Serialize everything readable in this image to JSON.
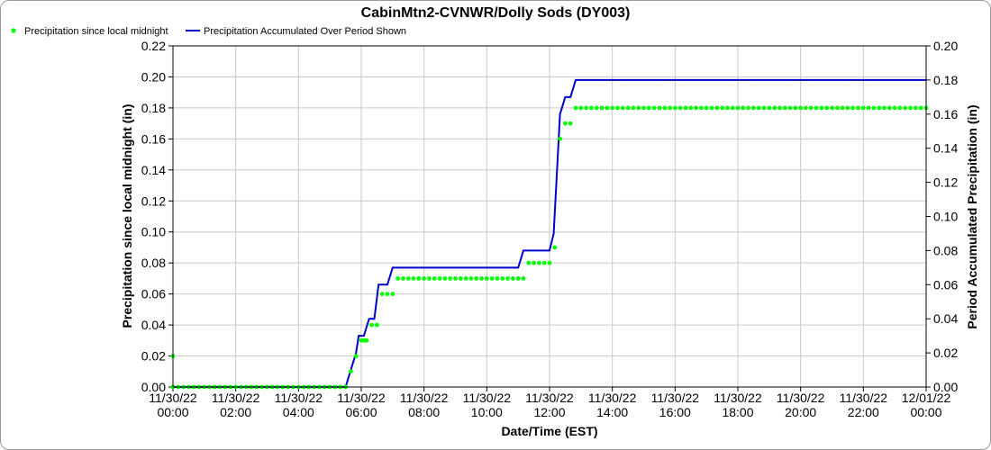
{
  "chart_data": {
    "type": "line",
    "title": "CabinMtn2-CVNWR/Dolly Sods (DY003)",
    "xlabel": "Date/Time (EST)",
    "ylabel": "Precipitation since local midnight (in)",
    "y2label": "Period Accumulated Precipitation (in)",
    "grid": true,
    "legend_placement": "top-left",
    "colors": {
      "points": "#00ff00",
      "line": "#0000cc",
      "grid": "#c8c8c8"
    },
    "xlim": [
      0,
      24
    ],
    "ylim": [
      0,
      0.22
    ],
    "y2lim": [
      0,
      0.2
    ],
    "yticks": [
      "0.00",
      "0.02",
      "0.04",
      "0.06",
      "0.08",
      "0.10",
      "0.12",
      "0.14",
      "0.16",
      "0.18",
      "0.20",
      "0.22"
    ],
    "y2ticks": [
      "0.00",
      "0.02",
      "0.04",
      "0.06",
      "0.08",
      "0.10",
      "0.12",
      "0.14",
      "0.16",
      "0.18",
      "0.20"
    ],
    "xticks": [
      {
        "date": "11/30/22",
        "time": "00:00"
      },
      {
        "date": "11/30/22",
        "time": "02:00"
      },
      {
        "date": "11/30/22",
        "time": "04:00"
      },
      {
        "date": "11/30/22",
        "time": "06:00"
      },
      {
        "date": "11/30/22",
        "time": "08:00"
      },
      {
        "date": "11/30/22",
        "time": "10:00"
      },
      {
        "date": "11/30/22",
        "time": "12:00"
      },
      {
        "date": "11/30/22",
        "time": "14:00"
      },
      {
        "date": "11/30/22",
        "time": "16:00"
      },
      {
        "date": "11/30/22",
        "time": "18:00"
      },
      {
        "date": "11/30/22",
        "time": "20:00"
      },
      {
        "date": "11/30/22",
        "time": "22:00"
      },
      {
        "date": "12/01/22",
        "time": "00:00"
      }
    ],
    "series": [
      {
        "name": "Precipitation since local midnight",
        "axis": "left",
        "style": "points",
        "points": [
          [
            "11/30/22 00:00",
            0.02
          ],
          [
            "11/30/22 00:00",
            0.0
          ],
          [
            "11/30/22 00:10",
            0.0
          ],
          [
            "11/30/22 00:20",
            0.0
          ],
          [
            "11/30/22 00:30",
            0.0
          ],
          [
            "11/30/22 00:40",
            0.0
          ],
          [
            "11/30/22 00:50",
            0.0
          ],
          [
            "11/30/22 01:00",
            0.0
          ],
          [
            "11/30/22 01:10",
            0.0
          ],
          [
            "11/30/22 01:20",
            0.0
          ],
          [
            "11/30/22 01:30",
            0.0
          ],
          [
            "11/30/22 01:40",
            0.0
          ],
          [
            "11/30/22 01:50",
            0.0
          ],
          [
            "11/30/22 02:00",
            0.0
          ],
          [
            "11/30/22 02:10",
            0.0
          ],
          [
            "11/30/22 02:20",
            0.0
          ],
          [
            "11/30/22 02:30",
            0.0
          ],
          [
            "11/30/22 02:40",
            0.0
          ],
          [
            "11/30/22 02:50",
            0.0
          ],
          [
            "11/30/22 03:00",
            0.0
          ],
          [
            "11/30/22 03:10",
            0.0
          ],
          [
            "11/30/22 03:20",
            0.0
          ],
          [
            "11/30/22 03:30",
            0.0
          ],
          [
            "11/30/22 03:40",
            0.0
          ],
          [
            "11/30/22 03:50",
            0.0
          ],
          [
            "11/30/22 04:00",
            0.0
          ],
          [
            "11/30/22 04:10",
            0.0
          ],
          [
            "11/30/22 04:20",
            0.0
          ],
          [
            "11/30/22 04:30",
            0.0
          ],
          [
            "11/30/22 04:40",
            0.0
          ],
          [
            "11/30/22 04:50",
            0.0
          ],
          [
            "11/30/22 05:00",
            0.0
          ],
          [
            "11/30/22 05:10",
            0.0
          ],
          [
            "11/30/22 05:20",
            0.0
          ],
          [
            "11/30/22 05:30",
            0.0
          ],
          [
            "11/30/22 05:40",
            0.01
          ],
          [
            "11/30/22 05:50",
            0.02
          ],
          [
            "11/30/22 06:00",
            0.03
          ],
          [
            "11/30/22 06:05",
            0.03
          ],
          [
            "11/30/22 06:10",
            0.03
          ],
          [
            "11/30/22 06:20",
            0.04
          ],
          [
            "11/30/22 06:30",
            0.04
          ],
          [
            "11/30/22 06:40",
            0.06
          ],
          [
            "11/30/22 06:50",
            0.06
          ],
          [
            "11/30/22 07:00",
            0.06
          ],
          [
            "11/30/22 07:10",
            0.07
          ],
          [
            "11/30/22 07:20",
            0.07
          ],
          [
            "11/30/22 07:30",
            0.07
          ],
          [
            "11/30/22 07:40",
            0.07
          ],
          [
            "11/30/22 07:50",
            0.07
          ],
          [
            "11/30/22 08:00",
            0.07
          ],
          [
            "11/30/22 08:10",
            0.07
          ],
          [
            "11/30/22 08:20",
            0.07
          ],
          [
            "11/30/22 08:30",
            0.07
          ],
          [
            "11/30/22 08:40",
            0.07
          ],
          [
            "11/30/22 08:50",
            0.07
          ],
          [
            "11/30/22 09:00",
            0.07
          ],
          [
            "11/30/22 09:10",
            0.07
          ],
          [
            "11/30/22 09:20",
            0.07
          ],
          [
            "11/30/22 09:30",
            0.07
          ],
          [
            "11/30/22 09:40",
            0.07
          ],
          [
            "11/30/22 09:50",
            0.07
          ],
          [
            "11/30/22 10:00",
            0.07
          ],
          [
            "11/30/22 10:10",
            0.07
          ],
          [
            "11/30/22 10:20",
            0.07
          ],
          [
            "11/30/22 10:30",
            0.07
          ],
          [
            "11/30/22 10:40",
            0.07
          ],
          [
            "11/30/22 10:50",
            0.07
          ],
          [
            "11/30/22 11:00",
            0.07
          ],
          [
            "11/30/22 11:10",
            0.07
          ],
          [
            "11/30/22 11:20",
            0.08
          ],
          [
            "11/30/22 11:30",
            0.08
          ],
          [
            "11/30/22 11:40",
            0.08
          ],
          [
            "11/30/22 11:50",
            0.08
          ],
          [
            "11/30/22 12:00",
            0.08
          ],
          [
            "11/30/22 12:10",
            0.09
          ],
          [
            "11/30/22 12:20",
            0.16
          ],
          [
            "11/30/22 12:30",
            0.17
          ],
          [
            "11/30/22 12:40",
            0.17
          ],
          [
            "11/30/22 12:50",
            0.18
          ],
          [
            "11/30/22 13:00",
            0.18
          ],
          [
            "11/30/22 13:10",
            0.18
          ],
          [
            "11/30/22 13:20",
            0.18
          ],
          [
            "11/30/22 13:30",
            0.18
          ],
          [
            "11/30/22 13:40",
            0.18
          ],
          [
            "11/30/22 13:50",
            0.18
          ],
          [
            "11/30/22 14:00",
            0.18
          ],
          [
            "11/30/22 14:10",
            0.18
          ],
          [
            "11/30/22 14:20",
            0.18
          ],
          [
            "11/30/22 14:30",
            0.18
          ],
          [
            "11/30/22 14:40",
            0.18
          ],
          [
            "11/30/22 14:50",
            0.18
          ],
          [
            "11/30/22 15:00",
            0.18
          ],
          [
            "11/30/22 15:10",
            0.18
          ],
          [
            "11/30/22 15:20",
            0.18
          ],
          [
            "11/30/22 15:30",
            0.18
          ],
          [
            "11/30/22 15:40",
            0.18
          ],
          [
            "11/30/22 15:50",
            0.18
          ],
          [
            "11/30/22 16:00",
            0.18
          ],
          [
            "11/30/22 16:10",
            0.18
          ],
          [
            "11/30/22 16:20",
            0.18
          ],
          [
            "11/30/22 16:30",
            0.18
          ],
          [
            "11/30/22 16:40",
            0.18
          ],
          [
            "11/30/22 16:50",
            0.18
          ],
          [
            "11/30/22 17:00",
            0.18
          ],
          [
            "11/30/22 17:10",
            0.18
          ],
          [
            "11/30/22 17:20",
            0.18
          ],
          [
            "11/30/22 17:30",
            0.18
          ],
          [
            "11/30/22 17:40",
            0.18
          ],
          [
            "11/30/22 17:50",
            0.18
          ],
          [
            "11/30/22 18:00",
            0.18
          ],
          [
            "11/30/22 18:10",
            0.18
          ],
          [
            "11/30/22 18:20",
            0.18
          ],
          [
            "11/30/22 18:30",
            0.18
          ],
          [
            "11/30/22 18:40",
            0.18
          ],
          [
            "11/30/22 18:50",
            0.18
          ],
          [
            "11/30/22 19:00",
            0.18
          ],
          [
            "11/30/22 19:10",
            0.18
          ],
          [
            "11/30/22 19:20",
            0.18
          ],
          [
            "11/30/22 19:30",
            0.18
          ],
          [
            "11/30/22 19:40",
            0.18
          ],
          [
            "11/30/22 19:50",
            0.18
          ],
          [
            "11/30/22 20:00",
            0.18
          ],
          [
            "11/30/22 20:10",
            0.18
          ],
          [
            "11/30/22 20:20",
            0.18
          ],
          [
            "11/30/22 20:30",
            0.18
          ],
          [
            "11/30/22 20:40",
            0.18
          ],
          [
            "11/30/22 20:50",
            0.18
          ],
          [
            "11/30/22 21:00",
            0.18
          ],
          [
            "11/30/22 21:10",
            0.18
          ],
          [
            "11/30/22 21:20",
            0.18
          ],
          [
            "11/30/22 21:30",
            0.18
          ],
          [
            "11/30/22 21:40",
            0.18
          ],
          [
            "11/30/22 21:50",
            0.18
          ],
          [
            "11/30/22 22:00",
            0.18
          ],
          [
            "11/30/22 22:10",
            0.18
          ],
          [
            "11/30/22 22:20",
            0.18
          ],
          [
            "11/30/22 22:30",
            0.18
          ],
          [
            "11/30/22 22:40",
            0.18
          ],
          [
            "11/30/22 22:50",
            0.18
          ],
          [
            "11/30/22 23:00",
            0.18
          ],
          [
            "11/30/22 23:10",
            0.18
          ],
          [
            "11/30/22 23:20",
            0.18
          ],
          [
            "11/30/22 23:30",
            0.18
          ],
          [
            "11/30/22 23:40",
            0.18
          ],
          [
            "11/30/22 23:50",
            0.18
          ],
          [
            "12/01/22 00:00",
            0.18
          ]
        ]
      },
      {
        "name": "Precipitation Accumulated Over Period Shown",
        "axis": "right",
        "style": "line",
        "points": [
          [
            "11/30/22 00:00",
            0.0
          ],
          [
            "11/30/22 05:30",
            0.0
          ],
          [
            "11/30/22 05:50",
            0.02
          ],
          [
            "11/30/22 05:55",
            0.03
          ],
          [
            "11/30/22 06:05",
            0.03
          ],
          [
            "11/30/22 06:15",
            0.04
          ],
          [
            "11/30/22 06:25",
            0.04
          ],
          [
            "11/30/22 06:33",
            0.06
          ],
          [
            "11/30/22 06:50",
            0.06
          ],
          [
            "11/30/22 07:00",
            0.07
          ],
          [
            "11/30/22 11:00",
            0.07
          ],
          [
            "11/30/22 11:10",
            0.08
          ],
          [
            "11/30/22 12:00",
            0.08
          ],
          [
            "11/30/22 12:08",
            0.09
          ],
          [
            "11/30/22 12:20",
            0.16
          ],
          [
            "11/30/22 12:30",
            0.17
          ],
          [
            "11/30/22 12:40",
            0.17
          ],
          [
            "11/30/22 12:50",
            0.18
          ],
          [
            "12/01/22 00:00",
            0.18
          ]
        ]
      }
    ]
  }
}
